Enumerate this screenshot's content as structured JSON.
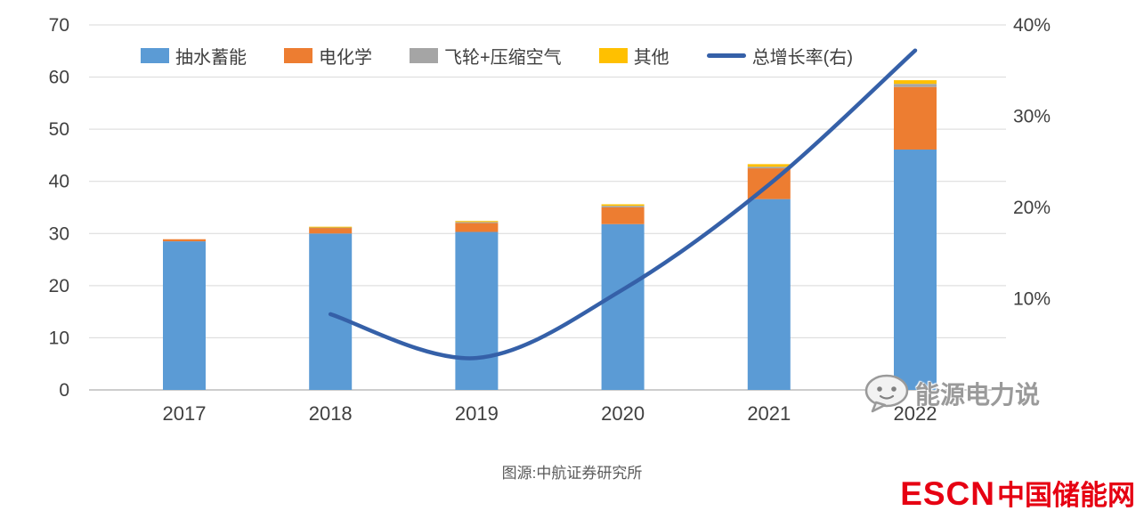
{
  "chart_data": {
    "type": "bar",
    "stacked": true,
    "title": "",
    "grid": true,
    "legend_position": "top",
    "categories": [
      "2017",
      "2018",
      "2019",
      "2020",
      "2021",
      "2022"
    ],
    "series": [
      {
        "name": "抽水蓄能",
        "color": "#5B9BD5",
        "values": [
          28.5,
          30.0,
          30.3,
          31.8,
          36.6,
          46.1
        ]
      },
      {
        "name": "电化学",
        "color": "#ED7D31",
        "values": [
          0.4,
          1.1,
          1.7,
          3.2,
          5.9,
          12.0
        ]
      },
      {
        "name": "飞轮+压缩空气",
        "color": "#A5A5A5",
        "values": [
          0.0,
          0.1,
          0.2,
          0.3,
          0.3,
          0.6
        ]
      },
      {
        "name": "其他",
        "color": "#FFC000",
        "values": [
          0.0,
          0.1,
          0.2,
          0.3,
          0.5,
          0.7
        ]
      }
    ],
    "line_series": {
      "name": "总增长率(右)",
      "color": "#3560A8",
      "axis": "right",
      "values": [
        null,
        8.3,
        3.5,
        11.0,
        22.5,
        37.2
      ]
    },
    "left_axis": {
      "min": 0,
      "max": 70,
      "ticks": [
        0,
        10,
        20,
        30,
        40,
        50,
        60,
        70
      ]
    },
    "right_axis": {
      "min": 0,
      "max": 40,
      "ticks": [
        10,
        20,
        30,
        40
      ],
      "suffix": "%"
    }
  },
  "source_note": "图源:中航证券研究所",
  "watermark": {
    "text": "能源电力说",
    "icon": "chat-face-icon"
  },
  "branding": {
    "escn": "ESCN",
    "site_name": "中国储能网",
    "color": "#E60012"
  }
}
